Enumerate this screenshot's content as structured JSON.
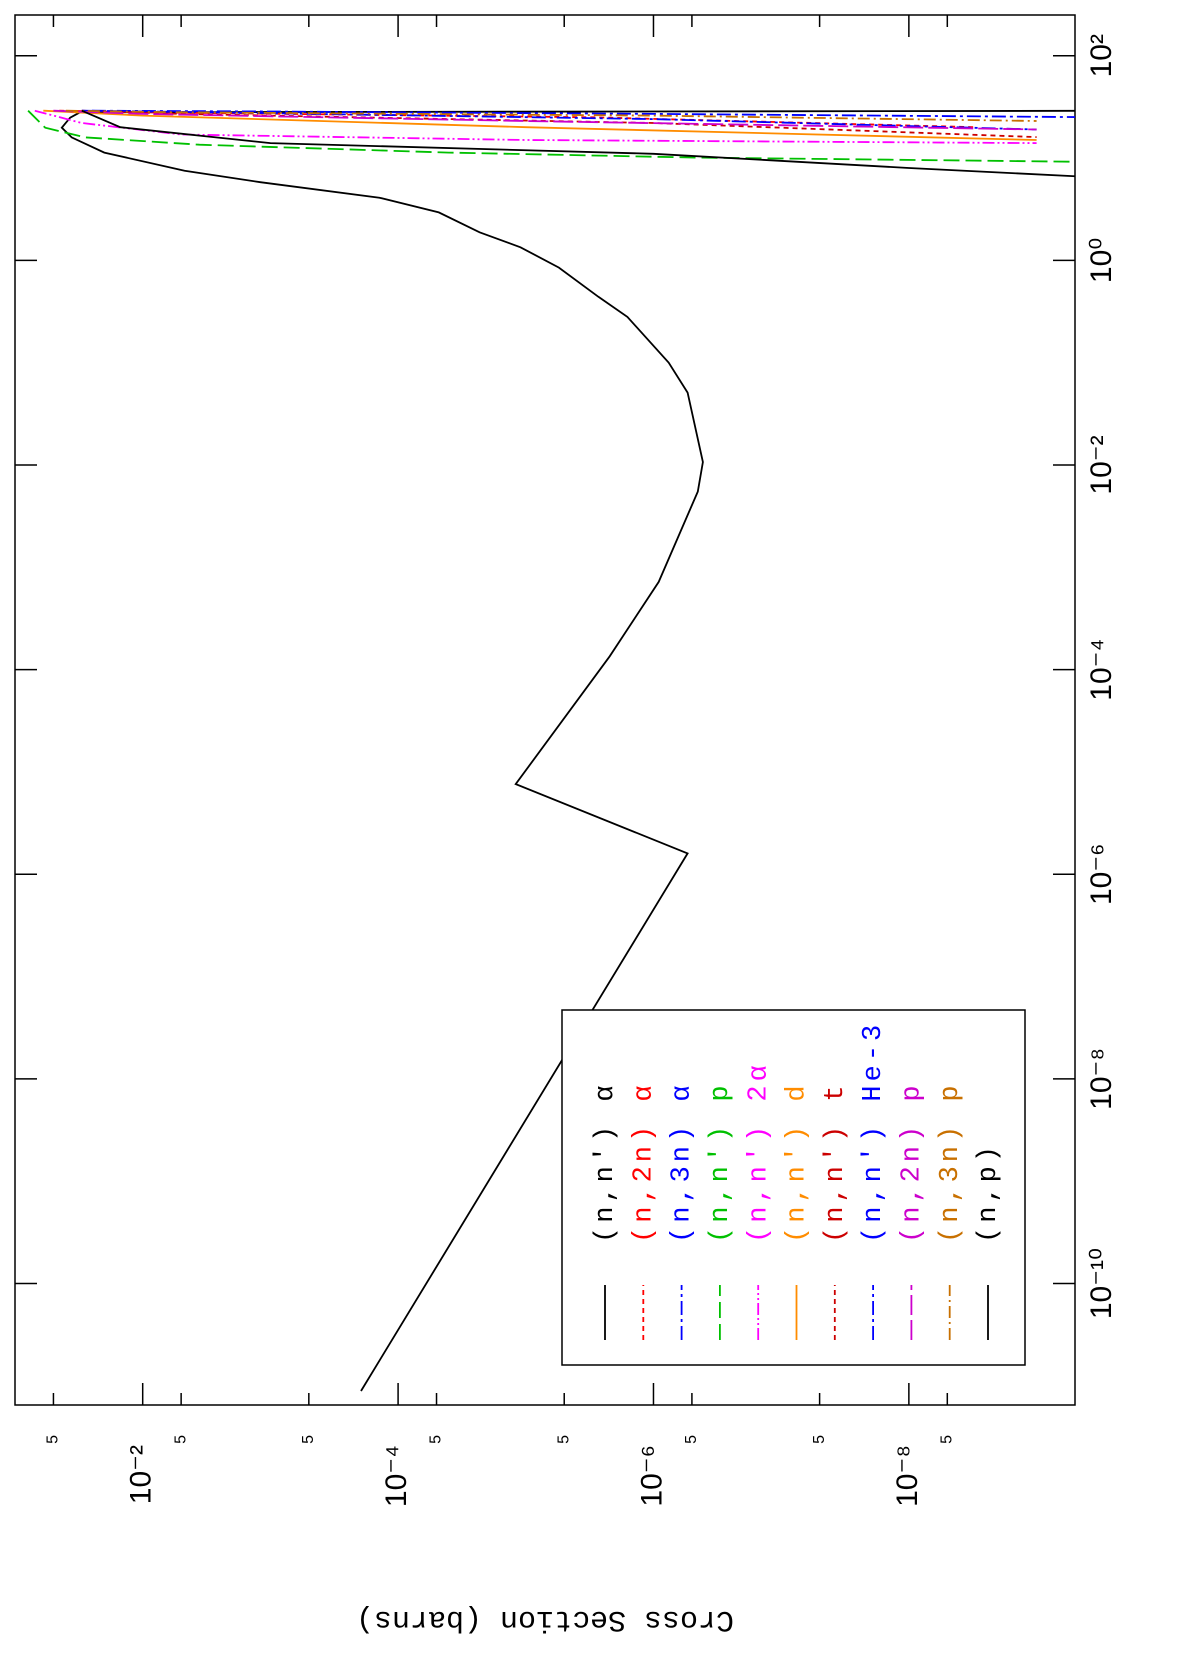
{
  "chart_data": {
    "type": "line",
    "ylabel": "Cross Section (barns)",
    "xscale": "log",
    "yscale": "log",
    "xlim": [
      6.5e-12,
      250
    ],
    "ylim": [
      5e-10,
      0.1
    ],
    "xticks": [
      {
        "value": 1e-10,
        "label": "10⁻¹⁰"
      },
      {
        "value": 1e-08,
        "label": "10⁻⁸"
      },
      {
        "value": 1e-06,
        "label": "10⁻⁶"
      },
      {
        "value": 0.0001,
        "label": "10⁻⁴"
      },
      {
        "value": 0.01,
        "label": "10⁻²"
      },
      {
        "value": 1,
        "label": "10⁰"
      },
      {
        "value": 100,
        "label": "10²"
      }
    ],
    "yticks": [
      {
        "value": 0.05,
        "label": "5"
      },
      {
        "value": 0.01,
        "label": "10⁻²"
      },
      {
        "value": 0.005,
        "label": "5"
      },
      {
        "value": 0.0005,
        "label": "5"
      },
      {
        "value": 0.0001,
        "label": "10⁻⁴"
      },
      {
        "value": 5e-05,
        "label": "5"
      },
      {
        "value": 5e-06,
        "label": "5"
      },
      {
        "value": 1e-06,
        "label": "10⁻⁶"
      },
      {
        "value": 5e-07,
        "label": "5"
      },
      {
        "value": 5e-08,
        "label": "5"
      },
      {
        "value": 1e-08,
        "label": "10⁻⁸"
      },
      {
        "value": 5e-09,
        "label": "5"
      }
    ],
    "series": [
      {
        "name": "(n,n') α",
        "color": "#000000",
        "dash": "none",
        "x": [
          8.9e-12,
          1.6e-06,
          7.6e-06,
          0.000135,
          0.00072,
          0.0055,
          0.0107,
          0.051,
          0.1,
          0.28,
          0.44,
          0.85,
          1.34,
          1.88,
          2.94,
          4.1,
          5.8,
          7.5,
          11.3,
          15.9,
          19.8,
          24.8,
          28,
          29
        ],
        "values": [
          0.000195,
          5.4e-07,
          1.2e-05,
          2.2e-06,
          9.1e-07,
          4.5e-07,
          4.1e-07,
          5.4e-07,
          7.6e-07,
          1.6e-06,
          2.7e-06,
          5.5e-06,
          1.1e-05,
          2.3e-05,
          4.8e-05,
          0.00014,
          0.0012,
          0.0047,
          0.02,
          0.036,
          0.043,
          0.037,
          0.031,
          1e-10
        ]
      },
      {
        "name": "(n,2n) α",
        "color": "#ff0000",
        "dash": "5,4",
        "x": [
          29,
          28,
          25,
          20
        ],
        "values": [
          0.045,
          0.01,
          3e-06,
          3e-09
        ]
      },
      {
        "name": "(n,3n) α",
        "color": "#0000ff",
        "dash": "14,4,3,4",
        "x": [
          29,
          28.5,
          27,
          25
        ],
        "values": [
          0.025,
          0.001,
          1e-06,
          3e-10
        ]
      },
      {
        "name": "(n,n') p",
        "color": "#00c000",
        "dash": "16,6",
        "x": [
          29,
          19.8,
          15.9,
          13.5,
          11.3,
          10.1,
          9
        ],
        "values": [
          0.079,
          0.058,
          0.028,
          0.0036,
          4e-05,
          4.5e-07,
          1e-10
        ]
      },
      {
        "name": "(n,n') 2α",
        "color": "#ff00ff",
        "dash": "12,3,2,3,2,3",
        "x": [
          29,
          22,
          17,
          15,
          14
        ],
        "values": [
          0.07,
          0.03,
          0.005,
          1e-05,
          1e-09
        ]
      },
      {
        "name": "(n,n') d",
        "color": "#ff8c00",
        "dash": "none",
        "x": [
          29,
          26,
          20,
          15
        ],
        "values": [
          0.06,
          0.01,
          1e-05,
          1e-09
        ]
      },
      {
        "name": "(n,n') t",
        "color": "#cc0000",
        "dash": "5,4",
        "x": [
          29,
          27,
          22,
          16
        ],
        "values": [
          0.03,
          0.005,
          1e-06,
          1e-09
        ]
      },
      {
        "name": "(n,n') He-3",
        "color": "#0000ff",
        "dash": "14,4,3,4",
        "x": [
          29,
          28,
          24,
          19
        ],
        "values": [
          0.03,
          0.003,
          1e-06,
          1e-09
        ]
      },
      {
        "name": "(n,2n) p",
        "color": "#cc00cc",
        "dash": "20,5",
        "x": [
          29,
          27,
          23,
          19
        ],
        "values": [
          0.05,
          0.01,
          1e-05,
          1e-09
        ]
      },
      {
        "name": "(n,3n) p",
        "color": "#c87000",
        "dash": "12,4,2,4",
        "x": [
          29,
          28,
          26,
          23
        ],
        "values": [
          0.04,
          0.005,
          1e-06,
          1e-09
        ]
      },
      {
        "name": "(n,p)",
        "color": "#000000",
        "dash": "none",
        "x": [
          29,
          20,
          14,
          11,
          8,
          6
        ],
        "values": [
          0.03,
          0.015,
          0.001,
          1e-06,
          1e-08,
          1e-10
        ]
      }
    ]
  }
}
